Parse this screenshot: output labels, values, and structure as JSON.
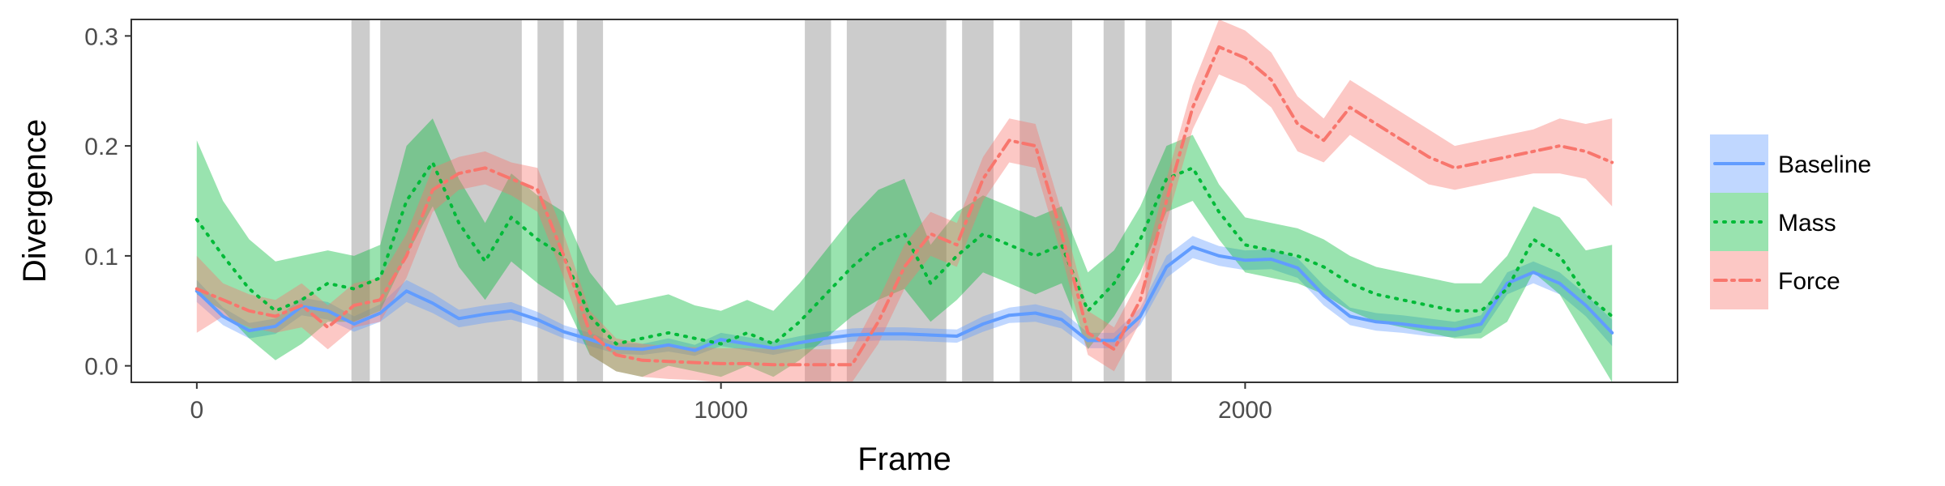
{
  "chart_data": {
    "type": "line",
    "xlabel": "Frame",
    "ylabel": "Divergence",
    "xlim": [
      -125,
      2825
    ],
    "ylim": [
      -0.015,
      0.315
    ],
    "x_ticks": [
      0,
      1000,
      2000
    ],
    "x_tick_labels": [
      "0",
      "1000",
      "2000"
    ],
    "y_ticks": [
      0.0,
      0.1,
      0.2,
      0.3
    ],
    "y_tick_labels": [
      "0.0",
      "0.1",
      "0.2",
      "0.3"
    ],
    "grid": false,
    "legend_position": "right",
    "shaded_intervals": [
      [
        295,
        330
      ],
      [
        350,
        620
      ],
      [
        650,
        700
      ],
      [
        725,
        775
      ],
      [
        1160,
        1210
      ],
      [
        1240,
        1430
      ],
      [
        1460,
        1520
      ],
      [
        1570,
        1670
      ],
      [
        1730,
        1770
      ],
      [
        1810,
        1860
      ]
    ],
    "series": [
      {
        "name": "Baseline",
        "color": "#619cff",
        "dash": "solid",
        "x": [
          0,
          50,
          100,
          150,
          200,
          250,
          300,
          350,
          400,
          450,
          500,
          550,
          600,
          650,
          700,
          750,
          800,
          850,
          900,
          950,
          1000,
          1050,
          1100,
          1150,
          1200,
          1250,
          1300,
          1350,
          1400,
          1450,
          1500,
          1550,
          1600,
          1650,
          1700,
          1750,
          1800,
          1850,
          1900,
          1950,
          2000,
          2050,
          2100,
          2150,
          2200,
          2250,
          2300,
          2350,
          2400,
          2450,
          2500,
          2550,
          2600,
          2650,
          2700
        ],
        "y": [
          0.068,
          0.045,
          0.032,
          0.036,
          0.054,
          0.05,
          0.038,
          0.048,
          0.068,
          0.057,
          0.043,
          0.047,
          0.05,
          0.042,
          0.031,
          0.024,
          0.016,
          0.015,
          0.019,
          0.014,
          0.024,
          0.02,
          0.016,
          0.021,
          0.025,
          0.028,
          0.029,
          0.029,
          0.028,
          0.027,
          0.038,
          0.046,
          0.048,
          0.042,
          0.023,
          0.023,
          0.045,
          0.09,
          0.108,
          0.1,
          0.096,
          0.097,
          0.089,
          0.064,
          0.045,
          0.04,
          0.038,
          0.035,
          0.033,
          0.038,
          0.075,
          0.085,
          0.075,
          0.055,
          0.03
        ],
        "lower": [
          0.058,
          0.037,
          0.025,
          0.029,
          0.046,
          0.042,
          0.031,
          0.04,
          0.058,
          0.048,
          0.035,
          0.039,
          0.042,
          0.035,
          0.025,
          0.018,
          0.011,
          0.01,
          0.013,
          0.009,
          0.018,
          0.014,
          0.01,
          0.015,
          0.019,
          0.022,
          0.023,
          0.023,
          0.022,
          0.021,
          0.031,
          0.039,
          0.04,
          0.034,
          0.016,
          0.016,
          0.037,
          0.08,
          0.098,
          0.091,
          0.087,
          0.088,
          0.08,
          0.055,
          0.037,
          0.032,
          0.03,
          0.027,
          0.026,
          0.03,
          0.065,
          0.075,
          0.065,
          0.045,
          0.018
        ],
        "upper": [
          0.078,
          0.053,
          0.039,
          0.043,
          0.062,
          0.058,
          0.045,
          0.056,
          0.078,
          0.066,
          0.051,
          0.055,
          0.058,
          0.049,
          0.037,
          0.03,
          0.021,
          0.02,
          0.025,
          0.019,
          0.03,
          0.026,
          0.022,
          0.027,
          0.031,
          0.034,
          0.035,
          0.035,
          0.034,
          0.033,
          0.045,
          0.053,
          0.056,
          0.05,
          0.03,
          0.03,
          0.053,
          0.1,
          0.118,
          0.109,
          0.105,
          0.106,
          0.098,
          0.073,
          0.053,
          0.048,
          0.046,
          0.043,
          0.04,
          0.046,
          0.085,
          0.095,
          0.085,
          0.065,
          0.042
        ]
      },
      {
        "name": "Mass",
        "color": "#00ba38",
        "dash": "dotted",
        "x": [
          0,
          50,
          100,
          150,
          200,
          250,
          300,
          350,
          400,
          450,
          500,
          550,
          600,
          650,
          700,
          750,
          800,
          850,
          900,
          950,
          1000,
          1050,
          1100,
          1150,
          1200,
          1250,
          1300,
          1350,
          1400,
          1450,
          1500,
          1550,
          1600,
          1650,
          1700,
          1750,
          1800,
          1850,
          1900,
          1950,
          2000,
          2050,
          2100,
          2150,
          2200,
          2250,
          2300,
          2350,
          2400,
          2450,
          2500,
          2550,
          2600,
          2650,
          2700
        ],
        "y": [
          0.133,
          0.1,
          0.07,
          0.05,
          0.06,
          0.075,
          0.07,
          0.08,
          0.15,
          0.185,
          0.13,
          0.095,
          0.135,
          0.115,
          0.1,
          0.045,
          0.02,
          0.025,
          0.03,
          0.025,
          0.02,
          0.03,
          0.02,
          0.04,
          0.065,
          0.09,
          0.11,
          0.12,
          0.075,
          0.1,
          0.12,
          0.11,
          0.1,
          0.11,
          0.05,
          0.075,
          0.115,
          0.17,
          0.18,
          0.14,
          0.11,
          0.105,
          0.1,
          0.09,
          0.075,
          0.065,
          0.06,
          0.055,
          0.05,
          0.05,
          0.07,
          0.115,
          0.1,
          0.065,
          0.045
        ],
        "lower": [
          0.065,
          0.05,
          0.025,
          0.005,
          0.02,
          0.04,
          0.04,
          0.05,
          0.1,
          0.145,
          0.09,
          0.06,
          0.095,
          0.075,
          0.06,
          0.01,
          -0.005,
          -0.01,
          0.0,
          -0.005,
          -0.01,
          0.0,
          -0.01,
          0.005,
          0.025,
          0.045,
          0.06,
          0.07,
          0.04,
          0.06,
          0.085,
          0.075,
          0.065,
          0.075,
          0.015,
          0.045,
          0.085,
          0.14,
          0.15,
          0.115,
          0.085,
          0.08,
          0.075,
          0.065,
          0.05,
          0.04,
          0.035,
          0.03,
          0.025,
          0.025,
          0.04,
          0.085,
          0.065,
          0.025,
          -0.015
        ],
        "upper": [
          0.205,
          0.15,
          0.115,
          0.095,
          0.1,
          0.105,
          0.1,
          0.11,
          0.2,
          0.225,
          0.17,
          0.13,
          0.175,
          0.155,
          0.14,
          0.085,
          0.055,
          0.06,
          0.065,
          0.055,
          0.05,
          0.06,
          0.05,
          0.075,
          0.105,
          0.135,
          0.16,
          0.17,
          0.11,
          0.14,
          0.155,
          0.145,
          0.135,
          0.145,
          0.085,
          0.105,
          0.145,
          0.2,
          0.21,
          0.165,
          0.135,
          0.13,
          0.125,
          0.115,
          0.1,
          0.09,
          0.085,
          0.08,
          0.075,
          0.075,
          0.1,
          0.145,
          0.135,
          0.105,
          0.11
        ]
      },
      {
        "name": "Force",
        "color": "#f8766d",
        "dash": "dashdot",
        "x": [
          0,
          50,
          100,
          150,
          200,
          250,
          300,
          350,
          400,
          450,
          500,
          550,
          600,
          650,
          700,
          750,
          800,
          850,
          900,
          950,
          1000,
          1050,
          1100,
          1150,
          1200,
          1250,
          1300,
          1350,
          1400,
          1450,
          1500,
          1550,
          1600,
          1650,
          1700,
          1750,
          1800,
          1850,
          1900,
          1950,
          2000,
          2050,
          2100,
          2150,
          2200,
          2250,
          2300,
          2350,
          2400,
          2450,
          2500,
          2550,
          2600,
          2650,
          2700
        ],
        "y": [
          0.07,
          0.06,
          0.05,
          0.045,
          0.055,
          0.035,
          0.055,
          0.06,
          0.1,
          0.16,
          0.175,
          0.18,
          0.17,
          0.16,
          0.1,
          0.03,
          0.01,
          0.005,
          0.004,
          0.003,
          0.002,
          0.002,
          0.001,
          0.001,
          0.001,
          0.001,
          0.04,
          0.09,
          0.12,
          0.11,
          0.17,
          0.205,
          0.2,
          0.12,
          0.03,
          0.015,
          0.06,
          0.15,
          0.235,
          0.29,
          0.28,
          0.26,
          0.22,
          0.205,
          0.235,
          0.22,
          0.205,
          0.19,
          0.18,
          0.185,
          0.19,
          0.195,
          0.2,
          0.195,
          0.185
        ],
        "lower": [
          0.03,
          0.045,
          0.035,
          0.03,
          0.035,
          0.015,
          0.035,
          0.04,
          0.08,
          0.14,
          0.16,
          0.165,
          0.155,
          0.14,
          0.08,
          0.01,
          -0.005,
          -0.01,
          -0.012,
          -0.013,
          -0.015,
          -0.015,
          -0.015,
          -0.015,
          -0.015,
          -0.015,
          0.02,
          0.07,
          0.1,
          0.09,
          0.15,
          0.185,
          0.18,
          0.1,
          0.01,
          -0.005,
          0.04,
          0.13,
          0.215,
          0.265,
          0.255,
          0.235,
          0.195,
          0.185,
          0.21,
          0.195,
          0.18,
          0.165,
          0.16,
          0.165,
          0.17,
          0.175,
          0.175,
          0.17,
          0.145
        ],
        "upper": [
          0.1,
          0.075,
          0.065,
          0.06,
          0.075,
          0.055,
          0.075,
          0.08,
          0.12,
          0.18,
          0.19,
          0.195,
          0.185,
          0.18,
          0.12,
          0.05,
          0.025,
          0.02,
          0.018,
          0.017,
          0.016,
          0.016,
          0.015,
          0.015,
          0.015,
          0.015,
          0.06,
          0.11,
          0.14,
          0.13,
          0.19,
          0.225,
          0.22,
          0.14,
          0.05,
          0.035,
          0.08,
          0.17,
          0.255,
          0.315,
          0.305,
          0.285,
          0.245,
          0.225,
          0.26,
          0.245,
          0.23,
          0.215,
          0.2,
          0.205,
          0.21,
          0.215,
          0.225,
          0.22,
          0.225
        ]
      }
    ]
  }
}
